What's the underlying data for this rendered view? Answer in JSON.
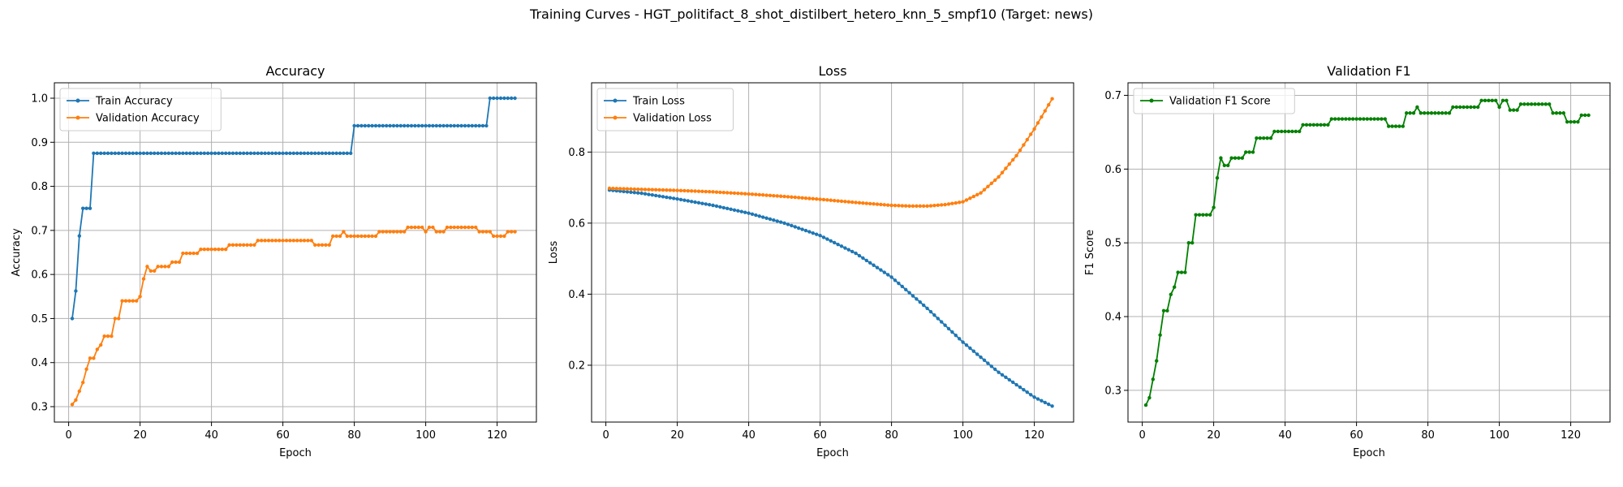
{
  "figure": {
    "suptitle": "Training Curves - HGT_politifact_8_shot_distilbert_hetero_knn_5_smpf10 (Target: news)"
  },
  "colors": {
    "blue": "#1f77b4",
    "orange": "#ff7f0e",
    "green": "#008000",
    "grid": "#b0b0b0"
  },
  "chart_data": [
    {
      "type": "line",
      "title": "Accuracy",
      "xlabel": "Epoch",
      "ylabel": "Accuracy",
      "xlim": [
        -4,
        131
      ],
      "ylim": [
        0.265,
        1.035
      ],
      "xticks": [
        0,
        20,
        40,
        60,
        80,
        100,
        120
      ],
      "yticks": [
        0.3,
        0.4,
        0.5,
        0.6,
        0.7,
        0.8,
        0.9,
        1.0
      ],
      "ytick_labels": [
        "0.3",
        "0.4",
        "0.5",
        "0.6",
        "0.7",
        "0.8",
        "0.9",
        "1.0"
      ],
      "grid": true,
      "legend": "upper left",
      "series": [
        {
          "name": "Train Accuracy",
          "color": "blue",
          "segments": [
            [
              1,
              0.5
            ],
            [
              2,
              0.5625
            ],
            [
              3,
              0.6875
            ],
            [
              4,
              0.75
            ],
            [
              6,
              0.75
            ],
            [
              7,
              0.875
            ],
            [
              79,
              0.875
            ],
            [
              80,
              0.9375
            ],
            [
              117,
              0.9375
            ],
            [
              118,
              1.0
            ],
            [
              125,
              1.0
            ]
          ]
        },
        {
          "name": "Validation Accuracy",
          "color": "orange",
          "segments": [
            [
              1,
              0.305
            ],
            [
              2,
              0.315
            ],
            [
              3,
              0.335
            ],
            [
              4,
              0.355
            ],
            [
              5,
              0.385
            ],
            [
              6,
              0.41
            ],
            [
              7,
              0.41
            ],
            [
              8,
              0.43
            ],
            [
              9,
              0.44
            ],
            [
              10,
              0.46
            ],
            [
              12,
              0.46
            ],
            [
              13,
              0.5
            ],
            [
              14,
              0.5
            ],
            [
              15,
              0.54
            ],
            [
              19,
              0.54
            ],
            [
              20,
              0.55
            ],
            [
              21,
              0.59
            ],
            [
              22,
              0.618
            ],
            [
              23,
              0.608
            ],
            [
              24,
              0.608
            ],
            [
              25,
              0.618
            ],
            [
              28,
              0.618
            ],
            [
              29,
              0.628
            ],
            [
              31,
              0.628
            ],
            [
              32,
              0.648
            ],
            [
              36,
              0.648
            ],
            [
              37,
              0.657
            ],
            [
              44,
              0.657
            ],
            [
              45,
              0.667
            ],
            [
              52,
              0.667
            ],
            [
              53,
              0.677
            ],
            [
              68,
              0.677
            ],
            [
              69,
              0.667
            ],
            [
              73,
              0.667
            ],
            [
              74,
              0.687
            ],
            [
              76,
              0.687
            ],
            [
              77,
              0.697
            ],
            [
              78,
              0.687
            ],
            [
              86,
              0.687
            ],
            [
              87,
              0.697
            ],
            [
              94,
              0.697
            ],
            [
              95,
              0.707
            ],
            [
              99,
              0.707
            ],
            [
              100,
              0.697
            ],
            [
              101,
              0.707
            ],
            [
              102,
              0.707
            ],
            [
              103,
              0.697
            ],
            [
              105,
              0.697
            ],
            [
              106,
              0.707
            ],
            [
              114,
              0.707
            ],
            [
              115,
              0.697
            ],
            [
              118,
              0.697
            ],
            [
              119,
              0.687
            ],
            [
              122,
              0.687
            ],
            [
              123,
              0.697
            ],
            [
              125,
              0.697
            ]
          ]
        }
      ]
    },
    {
      "type": "line",
      "title": "Loss",
      "xlabel": "Epoch",
      "ylabel": "Loss",
      "xlim": [
        -4,
        131
      ],
      "ylim": [
        0.04,
        0.995
      ],
      "xticks": [
        0,
        20,
        40,
        60,
        80,
        100,
        120
      ],
      "yticks": [
        0.2,
        0.4,
        0.6,
        0.8
      ],
      "ytick_labels": [
        "0.2",
        "0.4",
        "0.6",
        "0.8"
      ],
      "grid": true,
      "legend": "upper left",
      "series": [
        {
          "name": "Train Loss",
          "color": "blue",
          "segments": [
            [
              1,
              0.693
            ],
            [
              10,
              0.684
            ],
            [
              20,
              0.668
            ],
            [
              30,
              0.65
            ],
            [
              40,
              0.628
            ],
            [
              50,
              0.6
            ],
            [
              60,
              0.565
            ],
            [
              70,
              0.515
            ],
            [
              80,
              0.448
            ],
            [
              90,
              0.36
            ],
            [
              100,
              0.265
            ],
            [
              110,
              0.18
            ],
            [
              120,
              0.11
            ],
            [
              125,
              0.085
            ]
          ]
        },
        {
          "name": "Validation Loss",
          "color": "orange",
          "segments": [
            [
              1,
              0.698
            ],
            [
              10,
              0.695
            ],
            [
              20,
              0.692
            ],
            [
              30,
              0.688
            ],
            [
              40,
              0.682
            ],
            [
              50,
              0.675
            ],
            [
              60,
              0.667
            ],
            [
              70,
              0.658
            ],
            [
              80,
              0.65
            ],
            [
              85,
              0.648
            ],
            [
              90,
              0.648
            ],
            [
              95,
              0.652
            ],
            [
              100,
              0.66
            ],
            [
              105,
              0.685
            ],
            [
              110,
              0.73
            ],
            [
              115,
              0.79
            ],
            [
              120,
              0.865
            ],
            [
              125,
              0.95
            ]
          ]
        }
      ]
    },
    {
      "type": "line",
      "title": "Validation F1",
      "xlabel": "Epoch",
      "ylabel": "F1 Score",
      "xlim": [
        -4,
        131
      ],
      "ylim": [
        0.257,
        0.717
      ],
      "xticks": [
        0,
        20,
        40,
        60,
        80,
        100,
        120
      ],
      "yticks": [
        0.3,
        0.4,
        0.5,
        0.6,
        0.7
      ],
      "ytick_labels": [
        "0.3",
        "0.4",
        "0.5",
        "0.6",
        "0.7"
      ],
      "grid": true,
      "legend": "upper left",
      "series": [
        {
          "name": "Validation F1 Score",
          "color": "green",
          "segments": [
            [
              1,
              0.28
            ],
            [
              2,
              0.29
            ],
            [
              3,
              0.315
            ],
            [
              4,
              0.34
            ],
            [
              5,
              0.375
            ],
            [
              6,
              0.408
            ],
            [
              7,
              0.408
            ],
            [
              8,
              0.43
            ],
            [
              9,
              0.44
            ],
            [
              10,
              0.46
            ],
            [
              12,
              0.46
            ],
            [
              13,
              0.5
            ],
            [
              14,
              0.5
            ],
            [
              15,
              0.538
            ],
            [
              19,
              0.538
            ],
            [
              20,
              0.548
            ],
            [
              21,
              0.588
            ],
            [
              22,
              0.615
            ],
            [
              23,
              0.605
            ],
            [
              24,
              0.605
            ],
            [
              25,
              0.615
            ],
            [
              28,
              0.615
            ],
            [
              29,
              0.623
            ],
            [
              31,
              0.623
            ],
            [
              32,
              0.642
            ],
            [
              36,
              0.642
            ],
            [
              37,
              0.651
            ],
            [
              44,
              0.651
            ],
            [
              45,
              0.66
            ],
            [
              52,
              0.66
            ],
            [
              53,
              0.668
            ],
            [
              68,
              0.668
            ],
            [
              69,
              0.658
            ],
            [
              73,
              0.658
            ],
            [
              74,
              0.676
            ],
            [
              76,
              0.676
            ],
            [
              77,
              0.684
            ],
            [
              78,
              0.676
            ],
            [
              86,
              0.676
            ],
            [
              87,
              0.684
            ],
            [
              94,
              0.684
            ],
            [
              95,
              0.693
            ],
            [
              99,
              0.693
            ],
            [
              100,
              0.684
            ],
            [
              101,
              0.693
            ],
            [
              102,
              0.693
            ],
            [
              103,
              0.68
            ],
            [
              105,
              0.68
            ],
            [
              106,
              0.688
            ],
            [
              114,
              0.688
            ],
            [
              115,
              0.676
            ],
            [
              118,
              0.676
            ],
            [
              119,
              0.664
            ],
            [
              122,
              0.664
            ],
            [
              123,
              0.673
            ],
            [
              125,
              0.673
            ]
          ]
        }
      ]
    }
  ]
}
